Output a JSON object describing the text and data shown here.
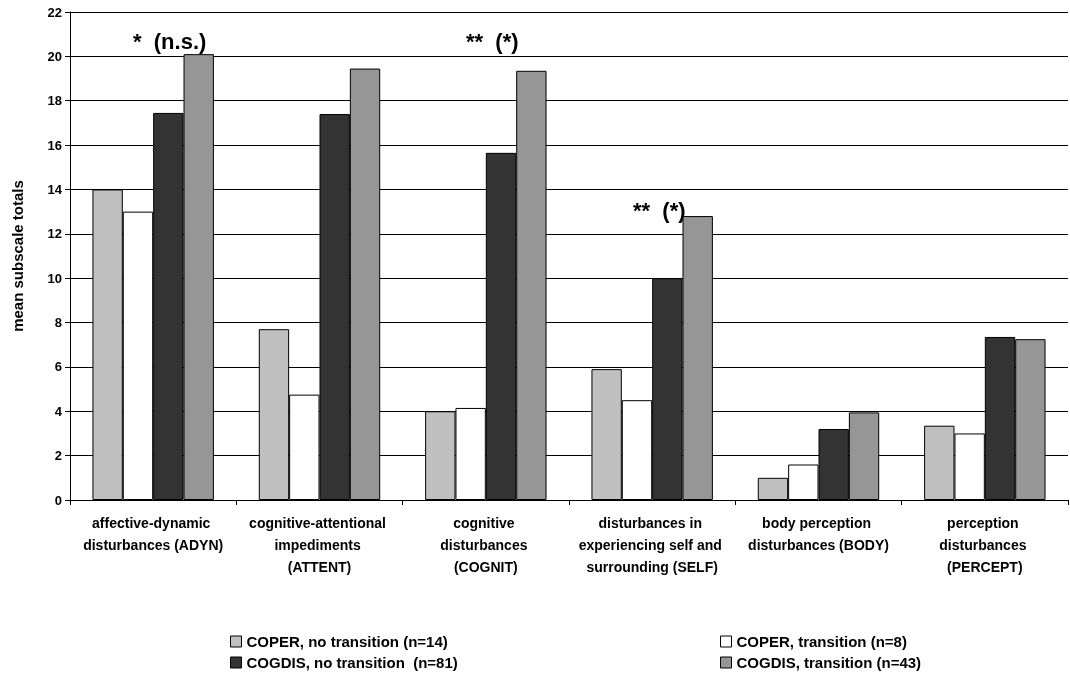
{
  "chart_data": {
    "type": "bar",
    "ylabel": "mean subscale totals",
    "categories": [
      "affective-dynamic disturbances (ADYN)",
      "cognitive-attentional impediments (ATTENT)",
      "cognitive disturbances (COGNIT)",
      "disturbances in experiencing self and surrounding (SELF)",
      "body perception disturbances (BODY)",
      "perception disturbances (PERCEPT)"
    ],
    "series": [
      {
        "name": "COPER, no transition (n=14)",
        "color": "#c0c0c0",
        "values": [
          14,
          7.7,
          4.0,
          5.9,
          1.0,
          3.35
        ]
      },
      {
        "name": "COPER, transition (n=8)",
        "color": "#ffffff",
        "values": [
          13,
          4.75,
          4.15,
          4.5,
          1.6,
          3.0
        ]
      },
      {
        "name": "COGDIS, no transition  (n=81)",
        "color": "#333333",
        "values": [
          17.45,
          17.4,
          15.65,
          10.0,
          3.2,
          7.35
        ]
      },
      {
        "name": "COGDIS, transition (n=43)",
        "color": "#969696",
        "values": [
          20.1,
          19.45,
          19.35,
          12.8,
          3.95,
          7.25
        ]
      }
    ],
    "ylim": [
      0,
      22
    ],
    "yticks": [
      0,
      2,
      4,
      6,
      8,
      10,
      12,
      14,
      16,
      18,
      20,
      22
    ],
    "grid": "y",
    "legend": "bottom",
    "annotations": [
      "*  (n.s.)",
      "**  (*)",
      "**  (*)"
    ]
  }
}
